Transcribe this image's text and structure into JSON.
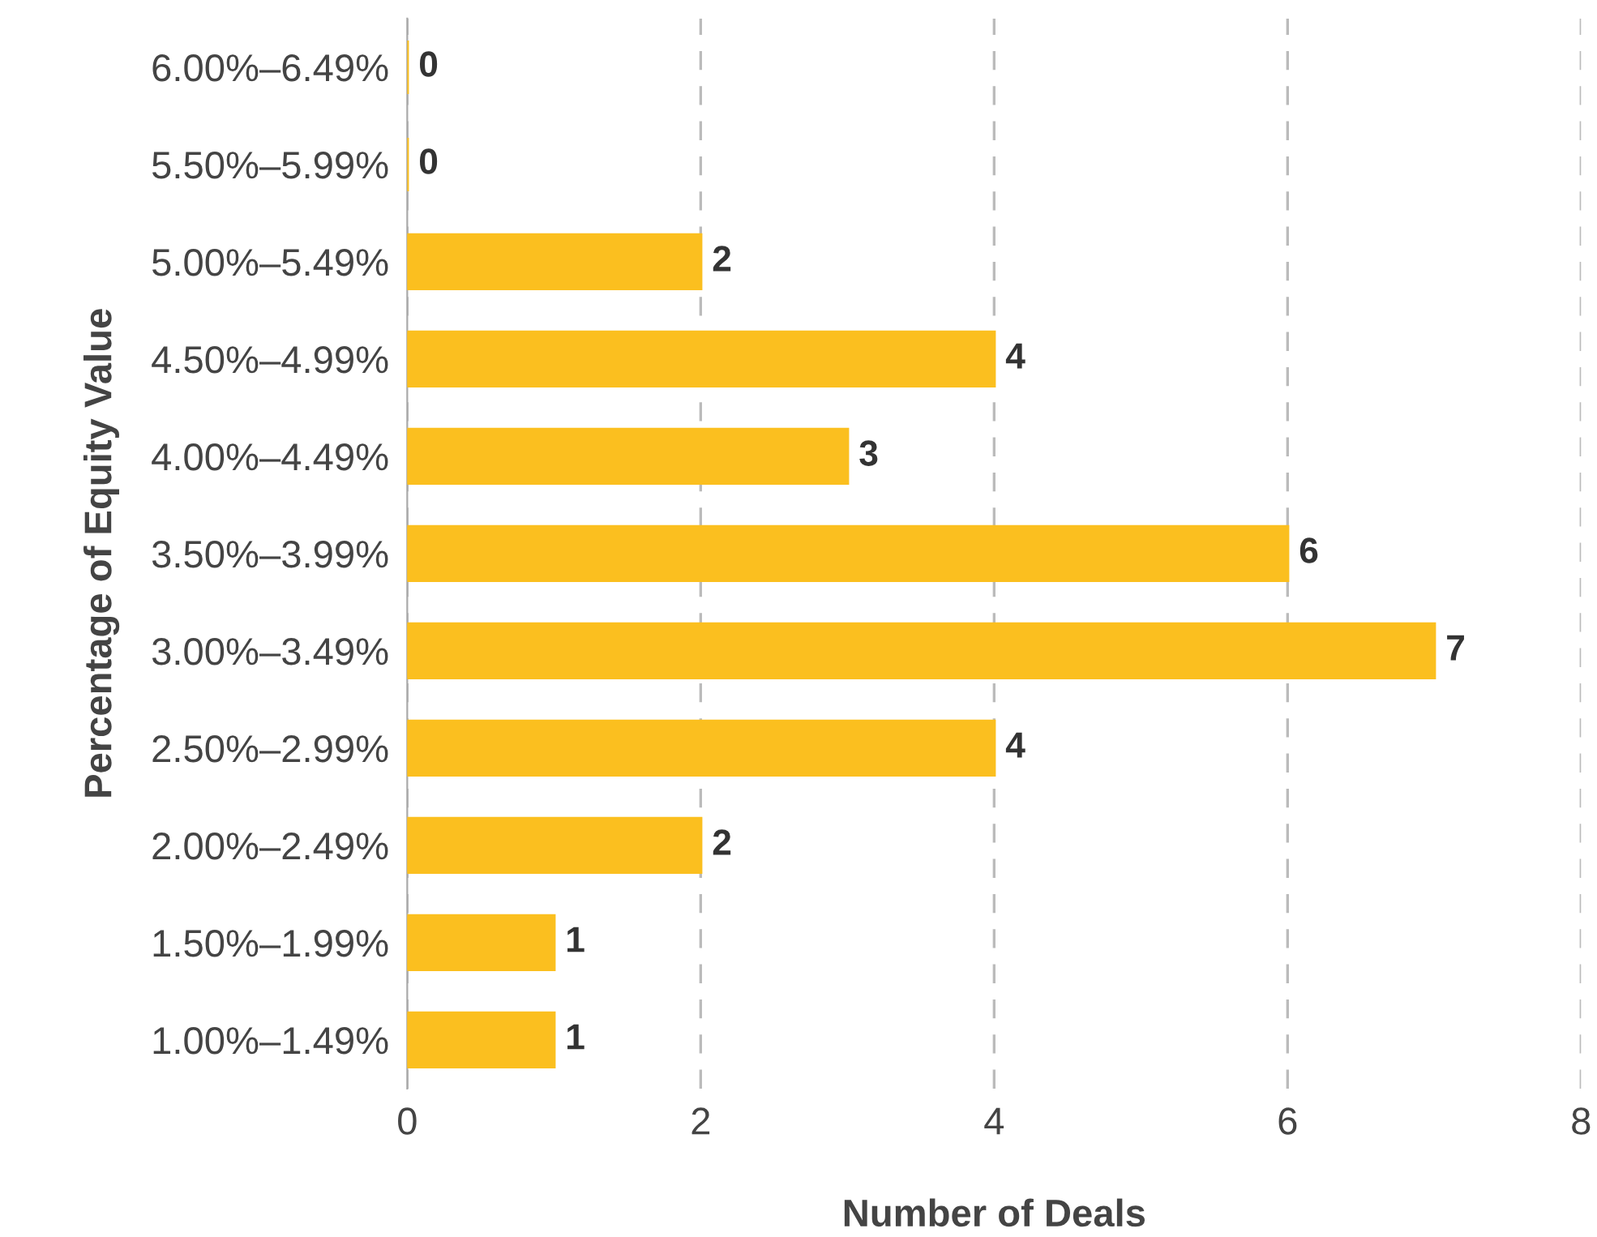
{
  "chart_data": {
    "type": "bar",
    "orientation": "horizontal",
    "xlabel": "Number of Deals",
    "ylabel": "Percentage of Equity Value",
    "categories": [
      "6.00%–6.49%",
      "5.50%–5.99%",
      "5.00%–5.49%",
      "4.50%–4.99%",
      "4.00%–4.49%",
      "3.50%–3.99%",
      "3.00%–3.49%",
      "2.50%–2.99%",
      "2.00%–2.49%",
      "1.50%–1.99%",
      "1.00%–1.49%"
    ],
    "values": [
      0,
      0,
      2,
      4,
      3,
      6,
      7,
      4,
      2,
      1,
      1
    ],
    "color": "#fbbf1f",
    "xlim": [
      0,
      8
    ],
    "xticks": [
      0,
      2,
      4,
      6,
      8
    ],
    "grid": "x",
    "data_labels": true
  }
}
